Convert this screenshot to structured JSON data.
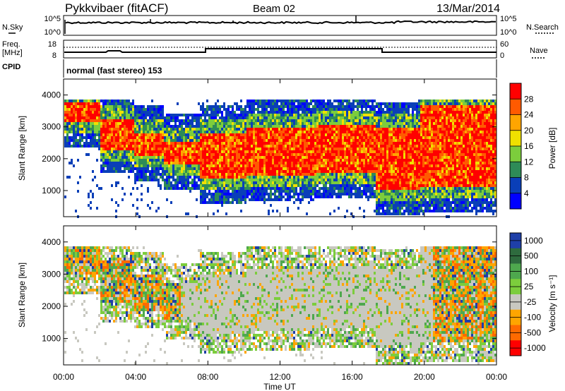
{
  "header": {
    "station": "Pykkvibaer (fitACF)",
    "beam": "Beam 02",
    "date": "13/Mar/2014"
  },
  "colors": {
    "power_scale": [
      "#0000ff",
      "#0a3fb8",
      "#2e8b57",
      "#7ccd3c",
      "#f0e000",
      "#ffa500",
      "#ff5a00",
      "#ff0000"
    ],
    "velocity_scale": [
      "#1e3fa8",
      "#2e6b3e",
      "#4ea84e",
      "#7ccd3c",
      "#c8c8c0",
      "#ffa500",
      "#ff6a00",
      "#ff0000"
    ],
    "line": "#000000"
  },
  "panels": {
    "nsky": {
      "left_label": "N.Sky",
      "right_label": "N.Search",
      "left_ticks": [
        "10^5",
        "10^0"
      ],
      "right_ticks": [
        "10^5",
        "10^0"
      ]
    },
    "freq": {
      "left_label_line1": "Freq.",
      "left_label_line2": "[MHz]",
      "right_label": "Nave",
      "left_ticks": [
        "18",
        "8"
      ],
      "right_ticks": [
        "60",
        "0"
      ]
    },
    "cpid": {
      "label": "CPID",
      "value": "normal (fast stereo) 153"
    }
  },
  "chart_data": [
    {
      "type": "heatmap",
      "name": "power",
      "ylabel": "Slant Range [km]",
      "yticks": [
        "4000",
        "3000",
        "2000",
        "1000"
      ],
      "colorbar_label": "Power [dB]",
      "colorbar_ticks": [
        "28",
        "24",
        "20",
        "16",
        "12",
        "8",
        "4"
      ],
      "ylim": [
        180,
        4500
      ]
    },
    {
      "type": "heatmap",
      "name": "velocity",
      "ylabel": "Slant Range [km]",
      "yticks": [
        "4000",
        "3000",
        "2000",
        "1000"
      ],
      "colorbar_label": "Velocity [m s⁻¹]",
      "colorbar_ticks": [
        "1000",
        "500",
        "100",
        "25",
        "-25",
        "-100",
        "-500",
        "-1000"
      ],
      "ylim": [
        180,
        4500
      ]
    }
  ],
  "xaxis": {
    "label": "Time UT",
    "ticks": [
      "00:00",
      "04:00",
      "08:00",
      "12:00",
      "16:00",
      "20:00",
      "00:00"
    ]
  }
}
